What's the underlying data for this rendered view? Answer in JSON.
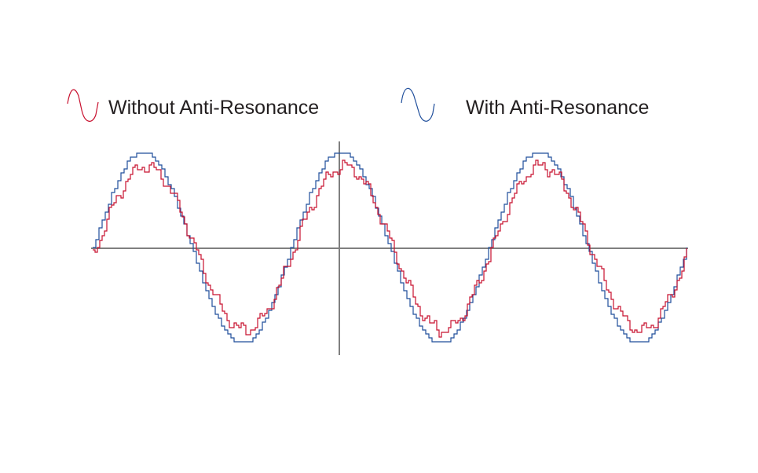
{
  "legend": [
    {
      "label": "Without Anti-Resonance",
      "color": "#c8102e",
      "icon": "sine-wave-icon"
    },
    {
      "label": "With Anti-Resonance",
      "color": "#1f4e9b",
      "icon": "sine-wave-icon"
    }
  ],
  "axes": {
    "color": "#7f7f7f"
  },
  "chart_data": {
    "type": "line",
    "series": [
      {
        "name": "Without Anti-Resonance",
        "waveform": "sine with stepped jitter",
        "cycles": 3
      },
      {
        "name": "With Anti-Resonance",
        "waveform": "smooth stepped sine",
        "cycles": 3
      }
    ]
  }
}
